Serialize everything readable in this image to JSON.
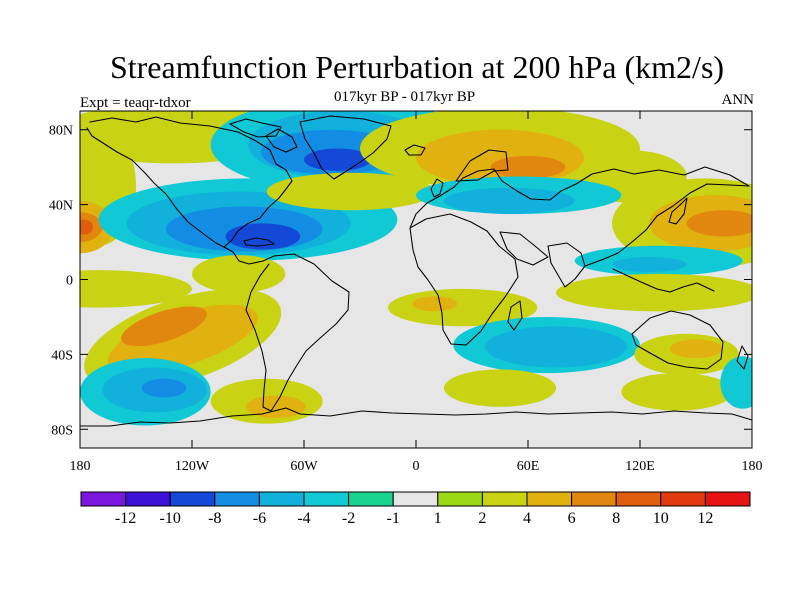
{
  "chart_data": {
    "type": "heatmap",
    "title": "Streamfunction Perturbation at 200 hPa (km2/s)",
    "subtitle": "017kyr BP - 017kyr BP",
    "left_annotation": "Expt = teaqr-tdxor",
    "right_annotation": "ANN",
    "x_axis": {
      "range": [
        -180,
        180
      ],
      "ticks": [
        -180,
        -120,
        -60,
        0,
        60,
        120,
        180
      ],
      "tick_labels": [
        "180",
        "120W",
        "60W",
        "0",
        "60E",
        "120E",
        "180"
      ]
    },
    "y_axis": {
      "range": [
        -90,
        90
      ],
      "ticks": [
        80,
        40,
        0,
        -40,
        -80
      ],
      "tick_labels": [
        "80N",
        "40N",
        "0",
        "40S",
        "80S"
      ]
    },
    "colorbar": {
      "levels": [
        -12,
        -10,
        -8,
        -6,
        -4,
        -2,
        -1,
        1,
        2,
        4,
        6,
        8,
        10,
        12
      ],
      "labels": [
        "-12",
        "-10",
        "-8",
        "-6",
        "-4",
        "-2",
        "-1",
        "1",
        "2",
        "4",
        "6",
        "8",
        "10",
        "12"
      ],
      "colors": [
        "#7b16df",
        "#3d12d7",
        "#1349d6",
        "#138de3",
        "#11b1db",
        "#11c9d5",
        "#19d48f",
        "#e6e6e6",
        "#9bd816",
        "#c9d213",
        "#e1b10f",
        "#e1860f",
        "#df5d0f",
        "#e13a0f",
        "#e51313"
      ]
    },
    "features": [
      {
        "type": "ellipse",
        "lon": -170,
        "lat": 50,
        "rx": 20,
        "ry": 32,
        "rotation": 0,
        "level": 2
      },
      {
        "type": "ellipse",
        "lon": -180,
        "lat": 28,
        "rx": 18,
        "ry": 14,
        "rotation": 0,
        "level": 4
      },
      {
        "type": "ellipse",
        "lon": -180,
        "lat": 28,
        "rx": 12,
        "ry": 8,
        "rotation": 0,
        "level": 6
      },
      {
        "type": "ellipse",
        "lon": -178,
        "lat": 28,
        "rx": 5,
        "ry": 4,
        "rotation": 0,
        "level": 8
      },
      {
        "type": "ellipse",
        "lon": -130,
        "lat": 78,
        "rx": 65,
        "ry": 16,
        "rotation": 0,
        "level": 2
      },
      {
        "type": "ellipse",
        "lon": -40,
        "lat": 72,
        "rx": 70,
        "ry": 25,
        "rotation": 0,
        "level": -2
      },
      {
        "type": "ellipse",
        "lon": -40,
        "lat": 72,
        "rx": 50,
        "ry": 18,
        "rotation": 0,
        "level": -4
      },
      {
        "type": "ellipse",
        "lon": -45,
        "lat": 68,
        "rx": 38,
        "ry": 12,
        "rotation": 0,
        "level": -6
      },
      {
        "type": "ellipse",
        "lon": -42,
        "lat": 64,
        "rx": 18,
        "ry": 6,
        "rotation": 0,
        "level": -8
      },
      {
        "type": "ellipse",
        "lon": -90,
        "lat": 32,
        "rx": 80,
        "ry": 22,
        "rotation": 0,
        "level": -2
      },
      {
        "type": "ellipse",
        "lon": -95,
        "lat": 30,
        "rx": 60,
        "ry": 17,
        "rotation": 0,
        "level": -4
      },
      {
        "type": "ellipse",
        "lon": -92,
        "lat": 27,
        "rx": 42,
        "ry": 12,
        "rotation": 0,
        "level": -6
      },
      {
        "type": "ellipse",
        "lon": -82,
        "lat": 23,
        "rx": 20,
        "ry": 7,
        "rotation": 0,
        "level": -8
      },
      {
        "type": "ellipse",
        "lon": -170,
        "lat": -5,
        "rx": 50,
        "ry": 10,
        "rotation": 0,
        "level": 2
      },
      {
        "type": "ellipse",
        "lon": -95,
        "lat": 3,
        "rx": 25,
        "ry": 10,
        "rotation": 0,
        "level": 2
      },
      {
        "type": "ellipse",
        "lon": -125,
        "lat": -32,
        "rx": 55,
        "ry": 22,
        "rotation": -18,
        "level": 2
      },
      {
        "type": "ellipse",
        "lon": -125,
        "lat": -32,
        "rx": 42,
        "ry": 14,
        "rotation": -18,
        "level": 4
      },
      {
        "type": "ellipse",
        "lon": -135,
        "lat": -25,
        "rx": 24,
        "ry": 8,
        "rotation": -18,
        "level": 6
      },
      {
        "type": "ellipse",
        "lon": -145,
        "lat": -60,
        "rx": 35,
        "ry": 18,
        "rotation": 0,
        "level": -2
      },
      {
        "type": "ellipse",
        "lon": -140,
        "lat": -59,
        "rx": 28,
        "ry": 12,
        "rotation": 0,
        "level": -4
      },
      {
        "type": "ellipse",
        "lon": -135,
        "lat": -58,
        "rx": 12,
        "ry": 5,
        "rotation": 0,
        "level": -6
      },
      {
        "type": "ellipse",
        "lon": -80,
        "lat": -65,
        "rx": 30,
        "ry": 12,
        "rotation": 0,
        "level": 2
      },
      {
        "type": "ellipse",
        "lon": -75,
        "lat": -68,
        "rx": 16,
        "ry": 6,
        "rotation": 0,
        "level": 4
      },
      {
        "type": "ellipse",
        "lon": -35,
        "lat": 47,
        "rx": 45,
        "ry": 10,
        "rotation": 0,
        "level": 2
      },
      {
        "type": "ellipse",
        "lon": 45,
        "lat": 70,
        "rx": 75,
        "ry": 22,
        "rotation": 0,
        "level": 2
      },
      {
        "type": "ellipse",
        "lon": 45,
        "lat": 65,
        "rx": 45,
        "ry": 15,
        "rotation": 0,
        "level": 4
      },
      {
        "type": "ellipse",
        "lon": 60,
        "lat": 60,
        "rx": 20,
        "ry": 6,
        "rotation": 0,
        "level": 6
      },
      {
        "type": "ellipse",
        "lon": 115,
        "lat": 55,
        "rx": 30,
        "ry": 14,
        "rotation": 0,
        "level": 2
      },
      {
        "type": "ellipse",
        "lon": 55,
        "lat": 45,
        "rx": 55,
        "ry": 10,
        "rotation": 0,
        "level": -2
      },
      {
        "type": "ellipse",
        "lon": 50,
        "lat": 42,
        "rx": 35,
        "ry": 7,
        "rotation": 0,
        "level": -4
      },
      {
        "type": "ellipse",
        "lon": 155,
        "lat": 30,
        "rx": 50,
        "ry": 24,
        "rotation": 0,
        "level": 2
      },
      {
        "type": "ellipse",
        "lon": 160,
        "lat": 30,
        "rx": 35,
        "ry": 15,
        "rotation": 0,
        "level": 4
      },
      {
        "type": "ellipse",
        "lon": 165,
        "lat": 30,
        "rx": 20,
        "ry": 7,
        "rotation": 0,
        "level": 6
      },
      {
        "type": "ellipse",
        "lon": 130,
        "lat": 10,
        "rx": 45,
        "ry": 8,
        "rotation": 0,
        "level": -2
      },
      {
        "type": "ellipse",
        "lon": 125,
        "lat": 8,
        "rx": 20,
        "ry": 4,
        "rotation": 0,
        "level": -4
      },
      {
        "type": "ellipse",
        "lon": 130,
        "lat": -7,
        "rx": 55,
        "ry": 10,
        "rotation": 0,
        "level": 2
      },
      {
        "type": "ellipse",
        "lon": 25,
        "lat": -15,
        "rx": 40,
        "ry": 10,
        "rotation": 0,
        "level": 2
      },
      {
        "type": "ellipse",
        "lon": 10,
        "lat": -13,
        "rx": 12,
        "ry": 4,
        "rotation": 0,
        "level": 4
      },
      {
        "type": "ellipse",
        "lon": 70,
        "lat": -35,
        "rx": 50,
        "ry": 15,
        "rotation": 0,
        "level": -2
      },
      {
        "type": "ellipse",
        "lon": 75,
        "lat": -36,
        "rx": 38,
        "ry": 11,
        "rotation": 0,
        "level": -4
      },
      {
        "type": "ellipse",
        "lon": 145,
        "lat": -40,
        "rx": 28,
        "ry": 11,
        "rotation": 0,
        "level": 2
      },
      {
        "type": "ellipse",
        "lon": 150,
        "lat": -37,
        "rx": 14,
        "ry": 5,
        "rotation": 0,
        "level": 4
      },
      {
        "type": "ellipse",
        "lon": 45,
        "lat": -58,
        "rx": 30,
        "ry": 10,
        "rotation": 0,
        "level": 2
      },
      {
        "type": "ellipse",
        "lon": 140,
        "lat": -60,
        "rx": 30,
        "ry": 10,
        "rotation": 0,
        "level": 2
      },
      {
        "type": "ellipse",
        "lon": 175,
        "lat": -55,
        "rx": 12,
        "ry": 14,
        "rotation": 0,
        "level": -2
      }
    ]
  }
}
